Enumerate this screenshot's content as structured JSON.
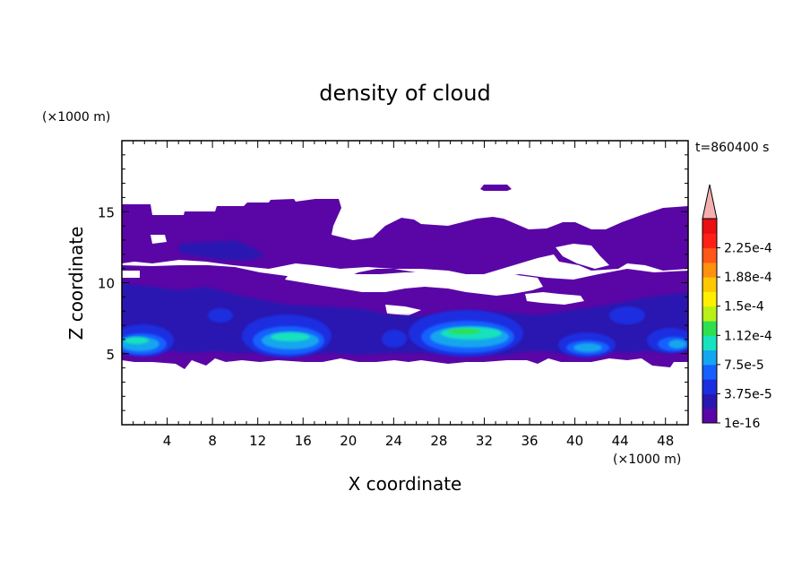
{
  "chart_data": {
    "type": "heatmap",
    "title": "density of cloud",
    "time_label": "t=860400 s",
    "xlabel": "X coordinate",
    "ylabel": "Z coordinate",
    "x_unit": "(×1000 m)",
    "y_unit": "(×1000 m)",
    "xlim": [
      0,
      50
    ],
    "ylim": [
      0,
      20
    ],
    "x_ticks": [
      "4",
      "8",
      "12",
      "16",
      "20",
      "24",
      "28",
      "32",
      "36",
      "40",
      "44",
      "48"
    ],
    "y_ticks": [
      "5",
      "10",
      "15"
    ],
    "colorbar": {
      "labels": [
        "1e-16",
        "3.75e-5",
        "7.5e-5",
        "1.12e-4",
        "1.5e-4",
        "1.88e-4",
        "2.25e-4"
      ],
      "colors": [
        "#5a06a6",
        "#2a17b0",
        "#1a2ee0",
        "#1560ff",
        "#14a6ee",
        "#19e2be",
        "#2ee050",
        "#b8f018",
        "#fff000",
        "#ffc800",
        "#ff9010",
        "#ff5818",
        "#ff2018",
        "#e81010"
      ],
      "extend_color": "#f4b0b0"
    },
    "layers": [
      {
        "level": "1e-16",
        "color": "#5a06a6",
        "description": "upper cloud deck",
        "x_range": [
          0,
          50
        ],
        "z_range": [
          8.5,
          15.5
        ]
      },
      {
        "level": "1e-16",
        "color": "#5a06a6",
        "description": "lower cloud deck",
        "x_range": [
          0,
          50
        ],
        "z_range": [
          4.5,
          9.5
        ]
      },
      {
        "level": "1e-16",
        "color": "#5a06a6",
        "description": "isolated patch",
        "x_range": [
          32,
          34.8
        ],
        "z_range": [
          16.2,
          16.7
        ]
      },
      {
        "level": "1.12e-4",
        "color": "#19e2be",
        "description": "cell maxima",
        "centers_x": [
          1.5,
          15.0,
          30.5,
          41.0,
          49.5
        ],
        "center_z": 5.7
      }
    ]
  }
}
